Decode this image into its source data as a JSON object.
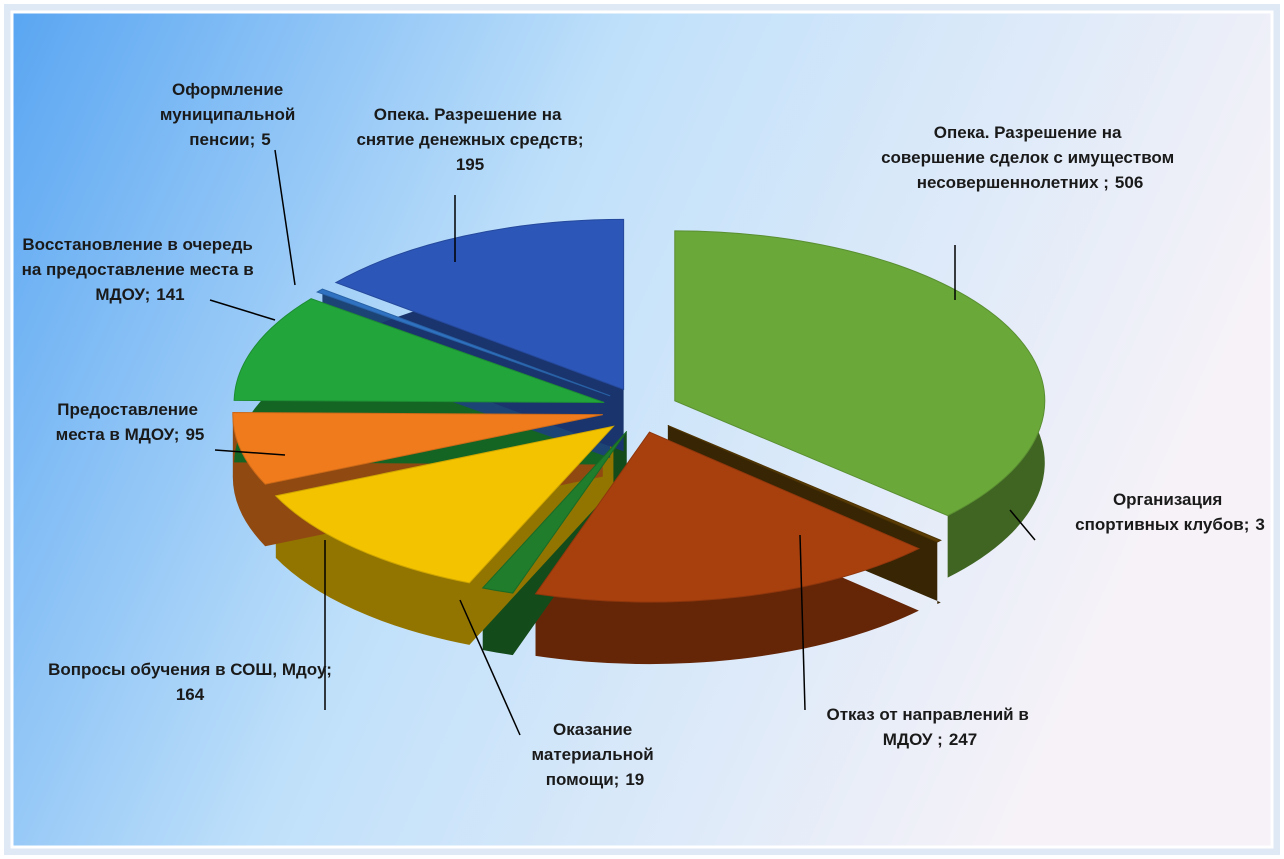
{
  "chart_data": {
    "type": "pie",
    "categories": [
      "Опека. Разрешение на совершение сделок с имуществом несовершеннолетних ;",
      "Организация спортивных клубов;",
      "Отказ от направлений в МДОУ ;",
      "Оказание материальной помощи;",
      "Вопросы обучения в СОШ, Мдоу;",
      "Предоставление места в МДОУ;",
      "Восстановление в очередь на предоставление места в МДОУ;",
      "Оформление муниципальной пенсии;",
      "Опека. Разрешение на снятие денежных средств;"
    ],
    "values": [
      506,
      3,
      247,
      19,
      164,
      95,
      141,
      5,
      195
    ],
    "colors": [
      "#6aa83a",
      "#5c3d05",
      "#a8400e",
      "#1f7d2c",
      "#f4c300",
      "#f07b1c",
      "#22a63c",
      "#2f72c2",
      "#2c56b8"
    ]
  }
}
